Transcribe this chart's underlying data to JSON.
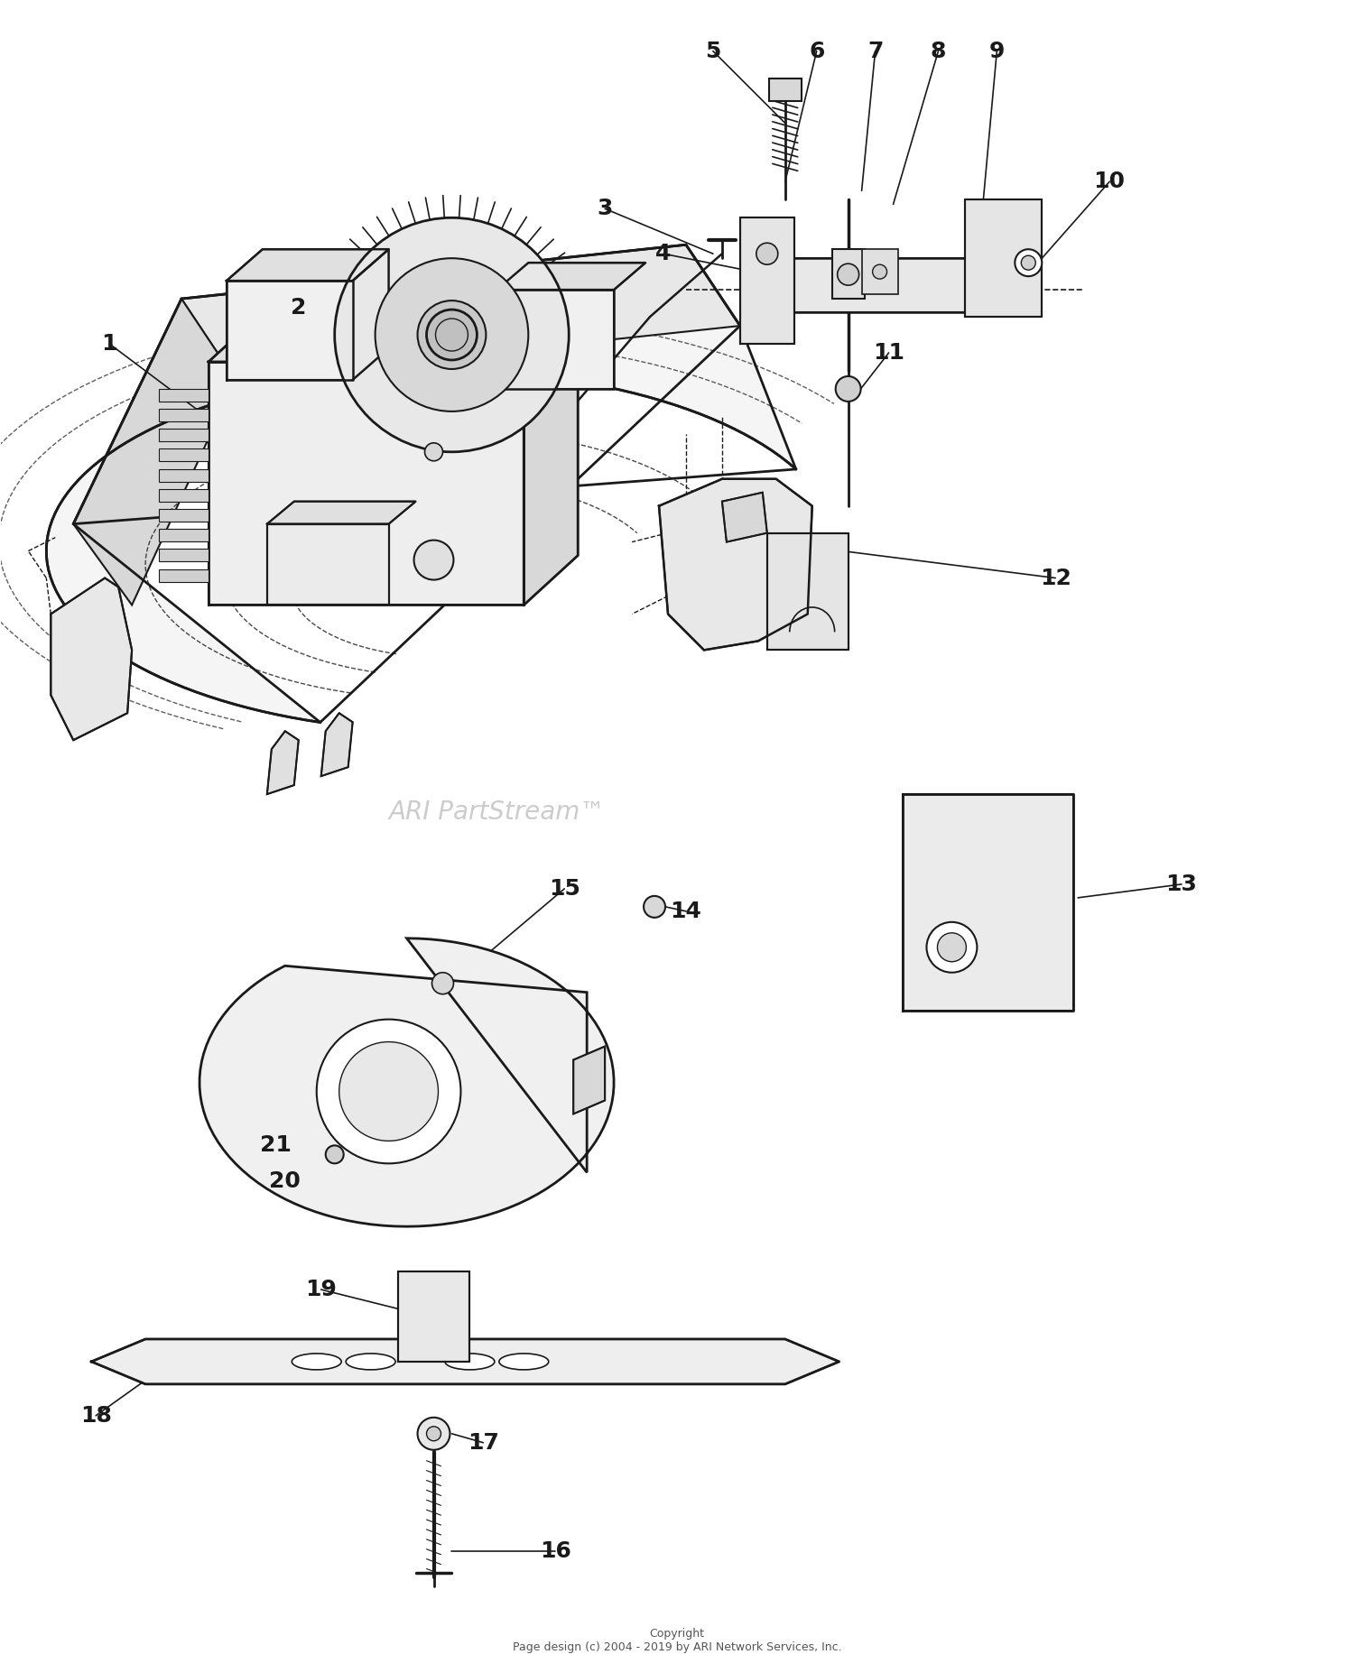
{
  "bg_color": "#ffffff",
  "line_color": "#1a1a1a",
  "copyright": "Copyright\nPage design (c) 2004 - 2019 by ARI Network Services, Inc.",
  "watermark": "ARI PartStream™",
  "figsize": [
    15.0,
    18.54
  ],
  "dpi": 100
}
